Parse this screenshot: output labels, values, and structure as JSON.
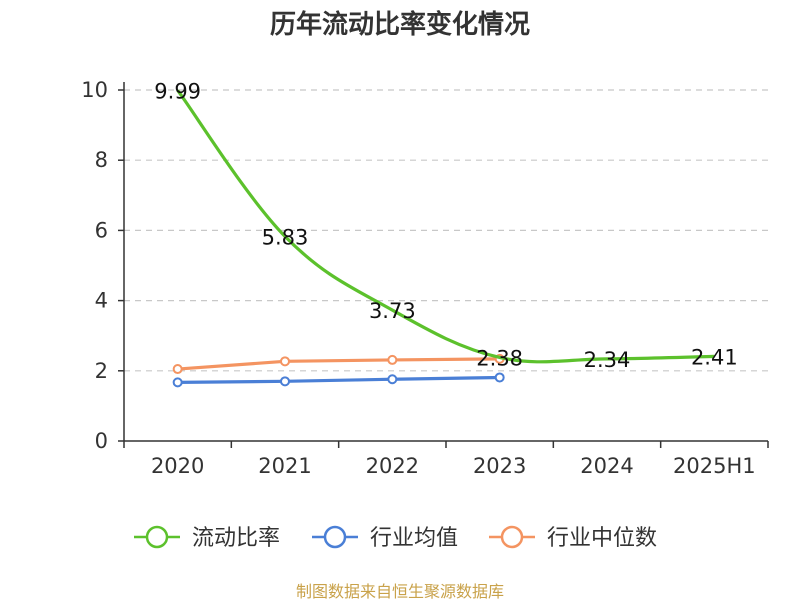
{
  "title": "历年流动比率变化情况",
  "source": "制图数据来自恒生聚源数据库",
  "colors": {
    "current_ratio": "#5cc12c",
    "industry_mean": "#4a7fd6",
    "industry_median": "#f49461",
    "grid": "#c8c8c8",
    "axis": "#333333"
  },
  "chart_data": {
    "type": "line",
    "categories": [
      "2020",
      "2021",
      "2022",
      "2023",
      "2024",
      "2025H1"
    ],
    "ylim": [
      0,
      10
    ],
    "yticks": [
      0,
      2,
      4,
      6,
      8,
      10
    ],
    "grid": true,
    "legend_position": "bottom",
    "series": [
      {
        "name": "流动比率",
        "values": [
          9.99,
          5.83,
          3.73,
          2.38,
          2.34,
          2.41
        ],
        "labels": [
          "9.99",
          "5.83",
          "3.73",
          "2.38",
          "2.34",
          "2.41"
        ],
        "color": "#5cc12c"
      },
      {
        "name": "行业均值",
        "values": [
          1.67,
          1.7,
          1.76,
          1.81,
          null,
          null
        ],
        "color": "#4a7fd6"
      },
      {
        "name": "行业中位数",
        "values": [
          2.05,
          2.27,
          2.31,
          2.34,
          null,
          null
        ],
        "color": "#f49461"
      }
    ]
  }
}
